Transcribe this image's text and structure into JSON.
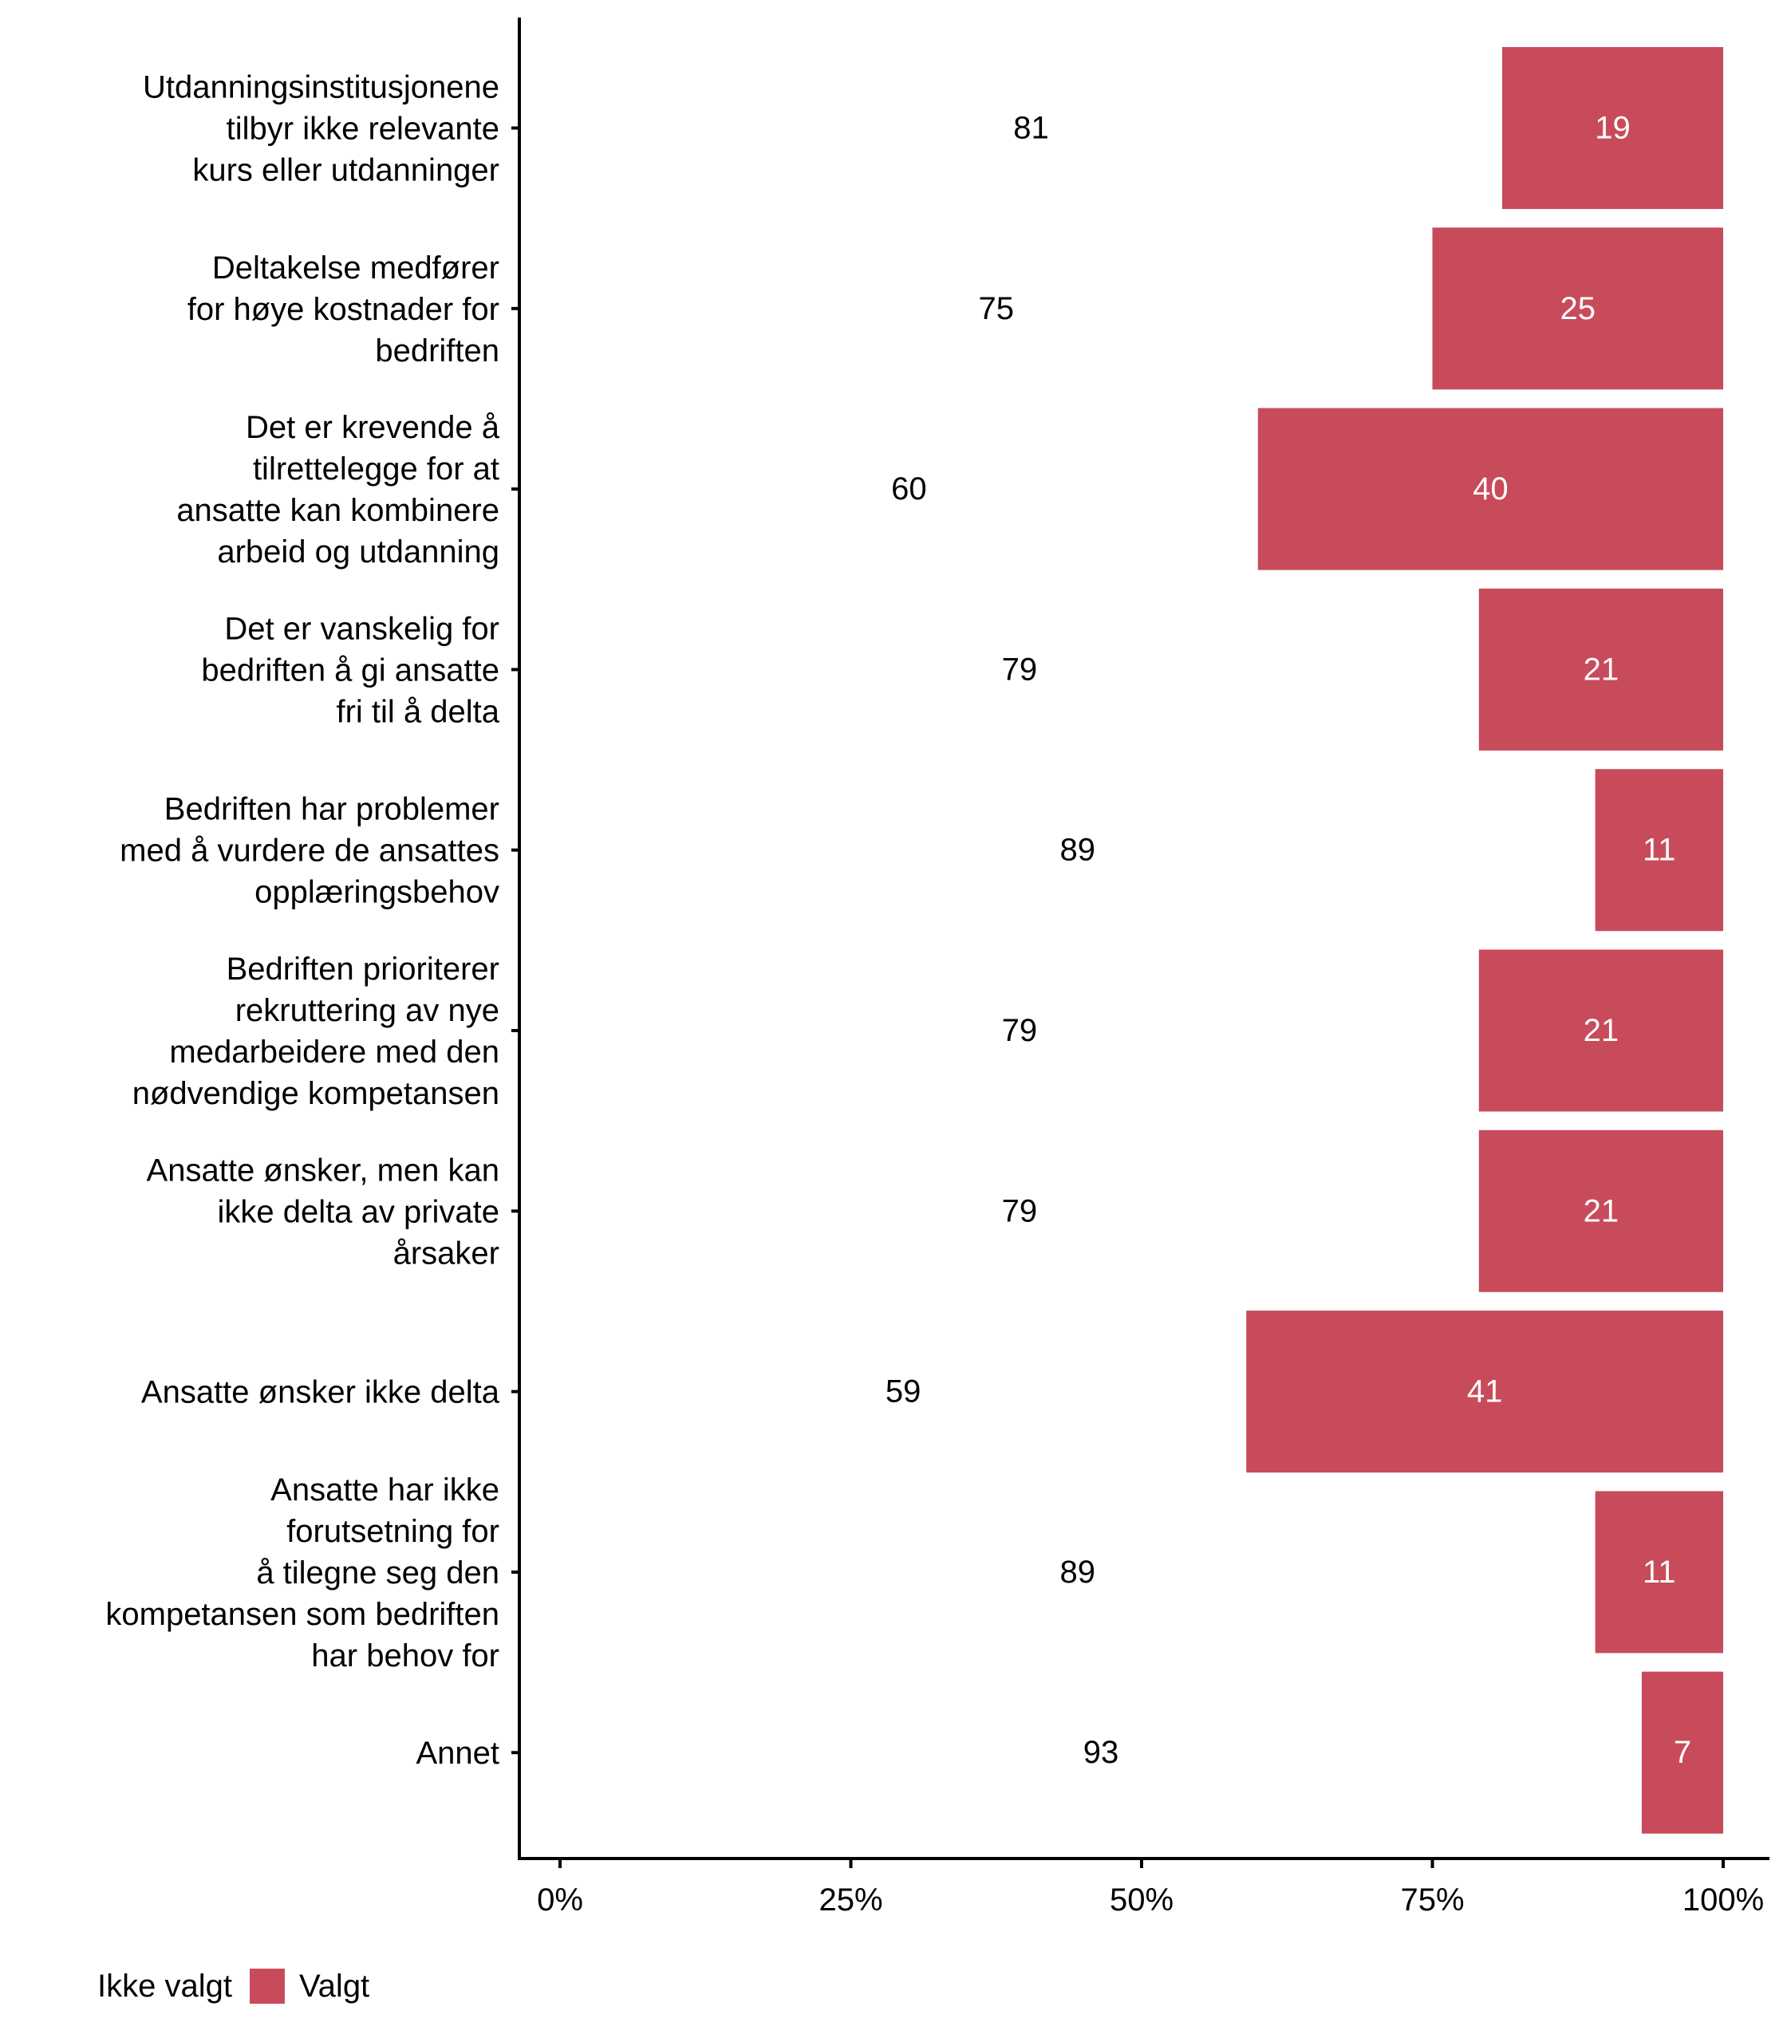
{
  "chart_data": {
    "type": "bar",
    "orientation": "horizontal",
    "stacked": true,
    "title": "",
    "xlabel": "",
    "ylabel": "",
    "xlim": [
      0,
      100
    ],
    "x_ticks": [
      "0%",
      "25%",
      "50%",
      "75%",
      "100%"
    ],
    "x_tick_values": [
      0,
      25,
      50,
      75,
      100
    ],
    "grid": false,
    "legend_position": "bottom-left",
    "categories": [
      [
        "Utdanningsinstitusjonene",
        "tilbyr ikke relevante",
        "kurs eller utdanninger"
      ],
      [
        "Deltakelse medfører",
        "for høye kostnader for",
        "bedriften"
      ],
      [
        "Det er krevende å",
        "tilrettelegge for at",
        "ansatte kan kombinere",
        "arbeid og utdanning"
      ],
      [
        "Det er vanskelig for",
        "bedriften å gi ansatte",
        "fri til å delta"
      ],
      [
        "Bedriften har problemer",
        "med å vurdere de ansattes",
        "opplæringsbehov"
      ],
      [
        "Bedriften prioriterer",
        "rekruttering av nye",
        "medarbeidere med den",
        "nødvendige kompetansen"
      ],
      [
        "Ansatte ønsker, men kan",
        "ikke delta av private",
        "årsaker"
      ],
      [
        "Ansatte ønsker ikke delta"
      ],
      [
        "Ansatte har ikke",
        "forutsetning for",
        "å tilegne seg den",
        "kompetansen som bedriften",
        "har behov for"
      ],
      [
        "Annet"
      ]
    ],
    "series": [
      {
        "name": "Ikke valgt",
        "color": "#FFFFFF",
        "label_color": "#000000",
        "values": [
          81,
          75,
          60,
          79,
          89,
          79,
          79,
          59,
          89,
          93
        ]
      },
      {
        "name": "Valgt",
        "color": "#C84B5B",
        "label_color": "#FFFFFF",
        "values": [
          19,
          25,
          40,
          21,
          11,
          21,
          21,
          41,
          11,
          7
        ]
      }
    ]
  }
}
